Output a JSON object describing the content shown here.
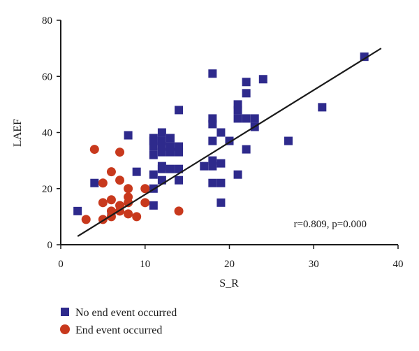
{
  "chart_data": {
    "type": "scatter",
    "xlabel": "S_R",
    "ylabel": "LAEF",
    "xlim": [
      0,
      40
    ],
    "ylim": [
      0,
      80
    ],
    "xticks": [
      0,
      10,
      20,
      30,
      40
    ],
    "yticks": [
      0,
      20,
      40,
      60,
      80
    ],
    "grid": false,
    "legend_position": "bottom-left",
    "annotation": "r=0.809, p=0.000",
    "trendline": {
      "x": [
        2,
        38
      ],
      "y": [
        3,
        70
      ]
    },
    "series": [
      {
        "name": "No end event occurred",
        "marker": "square",
        "color": "#2e2a8c",
        "points": [
          [
            2,
            12
          ],
          [
            4,
            22
          ],
          [
            6,
            11
          ],
          [
            8,
            39
          ],
          [
            9,
            26
          ],
          [
            11,
            14
          ],
          [
            11,
            20
          ],
          [
            11,
            25
          ],
          [
            11,
            32
          ],
          [
            11,
            35
          ],
          [
            11,
            37
          ],
          [
            11,
            38
          ],
          [
            12,
            23
          ],
          [
            12,
            27
          ],
          [
            12,
            28
          ],
          [
            12,
            33
          ],
          [
            12,
            35
          ],
          [
            12,
            37
          ],
          [
            12,
            40
          ],
          [
            13,
            27
          ],
          [
            13,
            33
          ],
          [
            13,
            35
          ],
          [
            13,
            38
          ],
          [
            14,
            23
          ],
          [
            14,
            27
          ],
          [
            14,
            33
          ],
          [
            14,
            35
          ],
          [
            14,
            48
          ],
          [
            17,
            28
          ],
          [
            18,
            22
          ],
          [
            18,
            28
          ],
          [
            18,
            30
          ],
          [
            18,
            37
          ],
          [
            18,
            43
          ],
          [
            18,
            45
          ],
          [
            18,
            61
          ],
          [
            19,
            15
          ],
          [
            19,
            22
          ],
          [
            19,
            29
          ],
          [
            19,
            40
          ],
          [
            20,
            37
          ],
          [
            21,
            25
          ],
          [
            21,
            45
          ],
          [
            21,
            48
          ],
          [
            21,
            50
          ],
          [
            22,
            34
          ],
          [
            22,
            45
          ],
          [
            22,
            54
          ],
          [
            22,
            58
          ],
          [
            23,
            42
          ],
          [
            23,
            45
          ],
          [
            24,
            59
          ],
          [
            27,
            37
          ],
          [
            31,
            49
          ],
          [
            36,
            67
          ]
        ]
      },
      {
        "name": "End event occurred",
        "marker": "circle",
        "color": "#c8391d",
        "points": [
          [
            3,
            9
          ],
          [
            4,
            34
          ],
          [
            5,
            9
          ],
          [
            5,
            15
          ],
          [
            5,
            22
          ],
          [
            6,
            10
          ],
          [
            6,
            12
          ],
          [
            6,
            16
          ],
          [
            6,
            26
          ],
          [
            7,
            12
          ],
          [
            7,
            14
          ],
          [
            7,
            23
          ],
          [
            7,
            33
          ],
          [
            8,
            11
          ],
          [
            8,
            15
          ],
          [
            8,
            17
          ],
          [
            8,
            20
          ],
          [
            9,
            10
          ],
          [
            10,
            15
          ],
          [
            10,
            20
          ],
          [
            14,
            12
          ]
        ]
      }
    ]
  }
}
